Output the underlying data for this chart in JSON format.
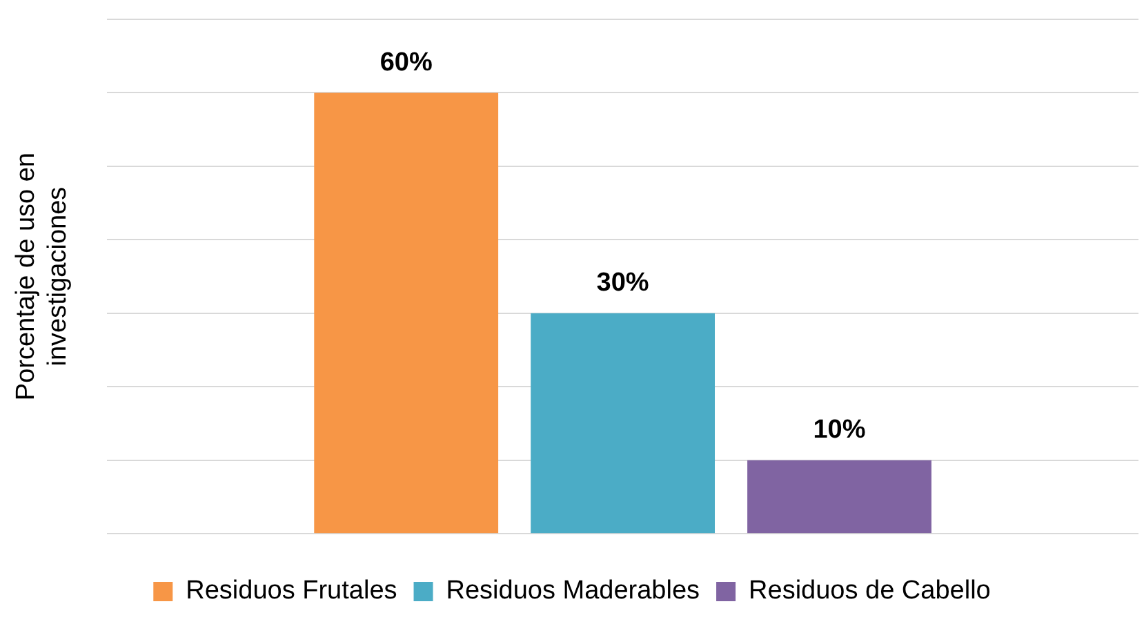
{
  "chart_data": {
    "type": "bar",
    "ylabel": "Porcentaje de uso en investigaciones",
    "categories": [
      null
    ],
    "series": [
      {
        "name": "Residuos Frutales",
        "color": "#f79646",
        "values": [
          60
        ],
        "value_labels": [
          "60%"
        ]
      },
      {
        "name": "Residuos Maderables",
        "color": "#4bacc6",
        "values": [
          30
        ],
        "value_labels": [
          "30%"
        ]
      },
      {
        "name": "Residuos de Cabello",
        "color": "#8064a2",
        "values": [
          10
        ],
        "value_labels": [
          "10%"
        ]
      }
    ],
    "ylim": [
      0,
      70
    ],
    "yticks": [
      {
        "value": 0,
        "label": null
      },
      {
        "value": 10,
        "label": null
      },
      {
        "value": 20,
        "label": null
      },
      {
        "value": 30,
        "label": null
      },
      {
        "value": 40,
        "label": null
      },
      {
        "value": 50,
        "label": null
      },
      {
        "value": 60,
        "label": null
      },
      {
        "value": 70,
        "label": null
      }
    ],
    "grid": "y",
    "legend": "bottom"
  }
}
